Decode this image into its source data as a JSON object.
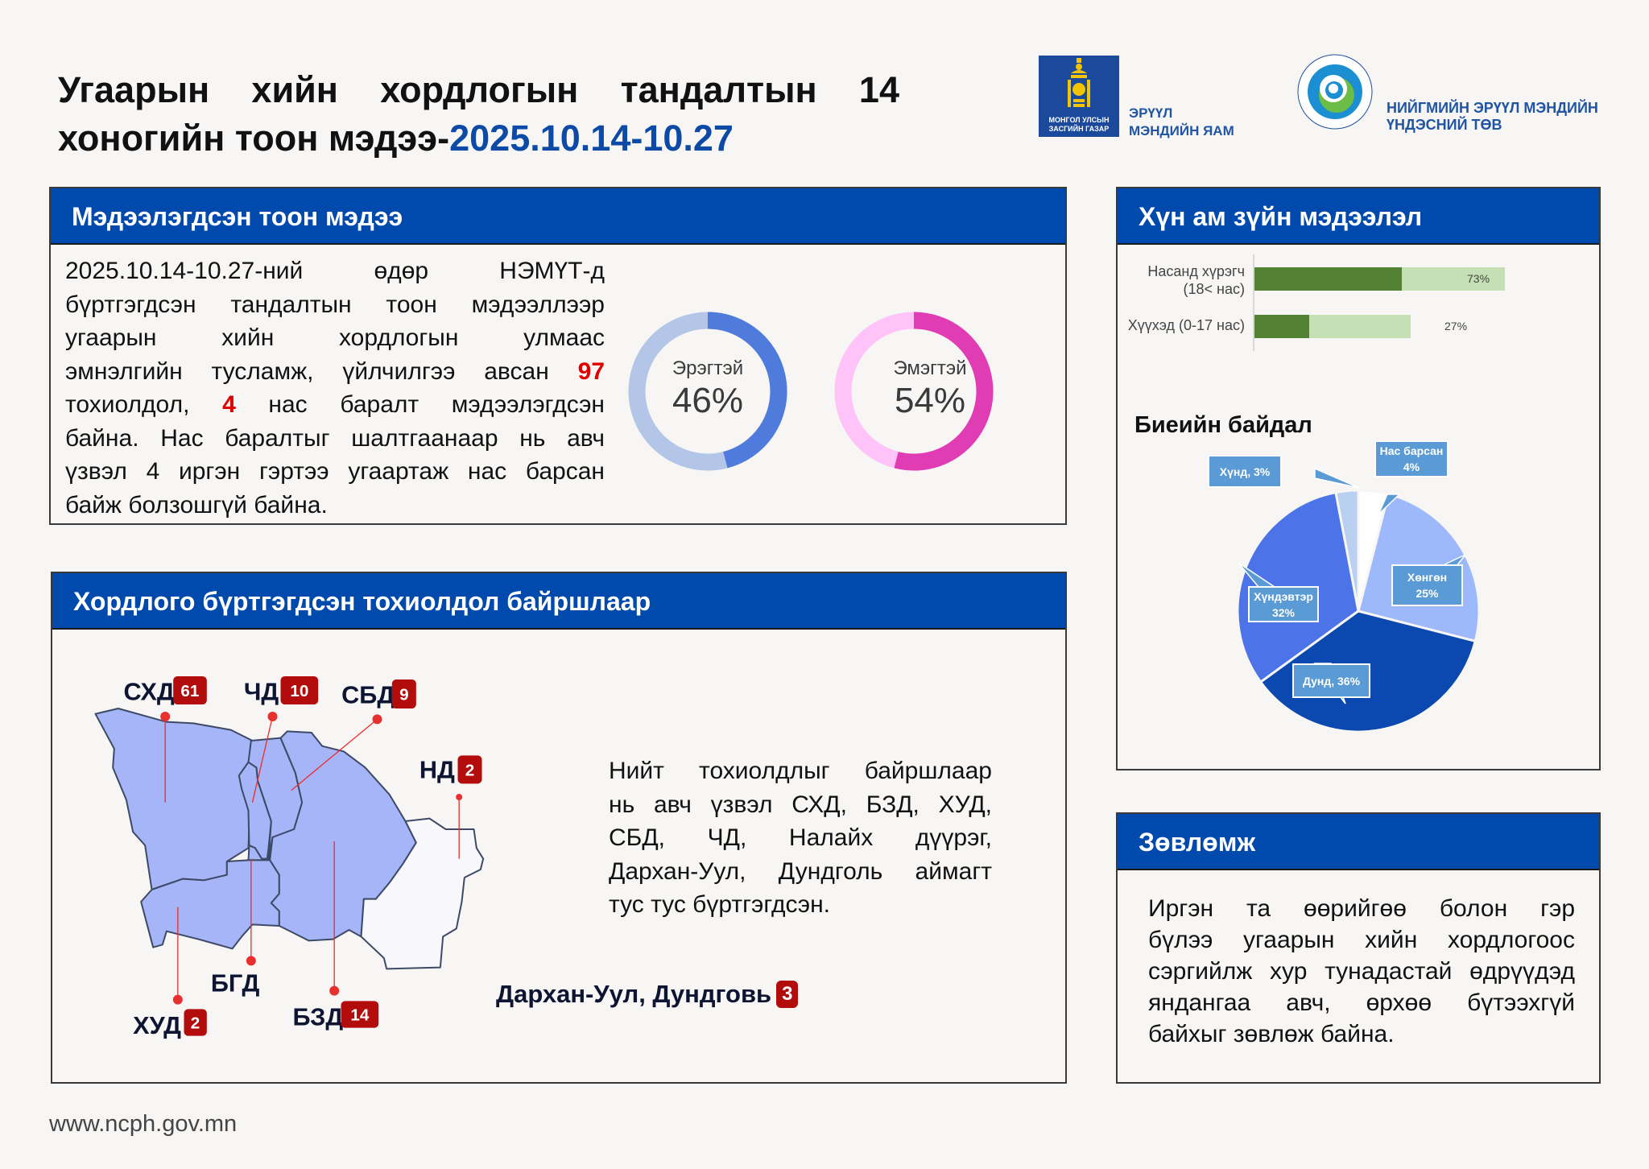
{
  "title": {
    "line1": "Угаарын хийн хордлогын тандалтын 14",
    "line2_prefix": "хоногийн тоон мэдээ-",
    "line2_dates": "2025.10.14-10.27"
  },
  "logos": {
    "gov_box_text": [
      "МОНГОЛ УЛСЫН",
      "ЗАСГИЙН ГАЗАР"
    ],
    "ministry": [
      "ЭРҮҮЛ",
      "МЭНДИЙН ЯАМ"
    ],
    "ncph_ring_text": "НИЙГМИЙН ЭРҮҮЛ МЭНДИЙН ҮНДЭСНИЙ ТӨВ • NATIONAL CENTER FOR PUBLIC HEALTH",
    "ncph": [
      "НИЙГМИЙН ЭРҮҮЛ МЭНДИЙН",
      "ҮНДЭСНИЙ ТӨВ"
    ]
  },
  "reported": {
    "header": "Мэдээлэгдсэн тоон мэдээ",
    "lines": [
      "2025.10.14-10.27-ний өдөр НЭМҮТ-д",
      "бүртгэгдсэн тандалтын тоон мэдээллээр",
      "угаарын хийн хордлогын улмаас",
      "эмнэлгийн тусламж, үйлчилгээ авсан",
      "97",
      "тохиолдол,",
      "4",
      "нас баралт мэдээлэгдсэн",
      "байна. Нас баралтыг шалтгаанаар нь авч",
      "үзвэл 4 иргэн гэртээ угаартаж нас барсан",
      "байж болзошгүй байна."
    ],
    "male": {
      "label": "Эрэгтэй",
      "value": "46%",
      "percent": 46,
      "color": "#4f7bdc",
      "track": "#b3c6e7"
    },
    "female": {
      "label": "Эмэгтэй",
      "value": "54%",
      "percent": 54,
      "color": "#e03cb4",
      "track": "#ffc3f9"
    }
  },
  "location": {
    "header": "Хордлого бүртгэгдсэн тохиолдол байршлаар",
    "districts": [
      {
        "name": "СХД",
        "count": "61"
      },
      {
        "name": "ЧД",
        "count": "10"
      },
      {
        "name": "СБД",
        "count": "9"
      },
      {
        "name": "НД",
        "count": "2"
      },
      {
        "name": "БГД",
        "count": ""
      },
      {
        "name": "ХУД",
        "count": "2"
      },
      {
        "name": "БЗД",
        "count": "14"
      }
    ],
    "provinces": {
      "name": "Дархан-Уул, Дундговь",
      "count": "3"
    },
    "lines": [
      "Нийт тохиолдлыг байршлаар",
      "нь авч үзвэл СХД, БЗД, ХУД,",
      "СБД, ЧД, Налайх дүүрэг,",
      "Дархан-Уул, Дундголь аймагт",
      "тус тус бүртгэгдсэн."
    ],
    "map_fill": "#a6b4f8",
    "badge_color": "#b30c0c"
  },
  "demographics": {
    "header": "Хүн ам зүйн мэдээлэл",
    "age_bars": [
      {
        "label_1": "Насанд хүрэгч",
        "label_2": "(18< нас)",
        "value": "73%",
        "percent": 73
      },
      {
        "label_1": "Хүүхэд (0-17 нас)",
        "value": "27%",
        "percent": 27
      }
    ],
    "colors": {
      "dark": "#548235",
      "light": "#c5e0b4"
    }
  },
  "chart_data": {
    "type": "pie",
    "title": "Биеийн байдал",
    "slices": [
      {
        "label": "Нас барсан",
        "value": 4,
        "display": "4%",
        "color": "#ffffff"
      },
      {
        "label": "Хөнгөн",
        "value": 25,
        "display": "25%",
        "color": "#9db8fb"
      },
      {
        "label": "Дунд",
        "value": 36,
        "display": "36%",
        "color": "#0b48b0"
      },
      {
        "label": "Хүндэвтэр",
        "value": 32,
        "display": "32%",
        "color": "#4c74e8"
      },
      {
        "label": "Хүнд",
        "value": 3,
        "display": "3%",
        "color": "#b9d0f0"
      }
    ],
    "callouts": {
      "dead": [
        "Нас барсан",
        "4%"
      ],
      "severe": "Хүнд, 3%",
      "mild": [
        "Хөнгөн",
        "25%"
      ],
      "moderate_severe": [
        "Хүндэвтэр",
        "32%"
      ],
      "moderate": "Дунд, 36%"
    }
  },
  "advice": {
    "header": "Зөвлөмж",
    "lines": [
      "Иргэн та өөрийгөө болон гэр",
      "бүлээ угаарын хийн хордлогоос",
      "сэргийлж хур тунадастай өдрүүдэд",
      "яндангаа авч, өрхөө бүтээхгүй",
      "байхыг зөвлөж байна."
    ]
  },
  "footer": {
    "website": "www.ncph.gov.mn"
  }
}
